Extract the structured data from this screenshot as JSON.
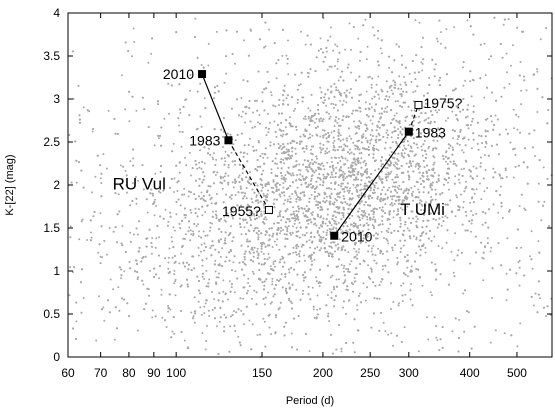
{
  "chart_data": {
    "type": "scatter",
    "title": "",
    "xlabel": "Period (d)",
    "ylabel": "K-[22] (mag)",
    "x_scale": "log",
    "xlim": [
      60,
      590
    ],
    "ylim": [
      0,
      4
    ],
    "x_ticks": [
      60,
      70,
      80,
      90,
      100,
      150,
      200,
      250,
      300,
      400,
      500
    ],
    "y_ticks": [
      0,
      0.5,
      1,
      1.5,
      2,
      2.5,
      3,
      3.5,
      4
    ],
    "y_tick_labels": [
      "0",
      "0.5",
      "1",
      "1.5",
      "2",
      "2.5",
      "3",
      "3.5",
      "4"
    ],
    "grid": false,
    "background_points": {
      "description_color": "#a9a9a9",
      "marker": "small dot",
      "count": 6500,
      "clusters": [
        {
          "x_center": 210,
          "y_center": 1.95,
          "weight": 0.55
        },
        {
          "x_center": 280,
          "y_center": 2.4,
          "weight": 0.25
        },
        {
          "x_center": 120,
          "y_center": 1.3,
          "weight": 0.2
        }
      ]
    },
    "series": [
      {
        "name": "RU Vul",
        "points": [
          {
            "x": 113,
            "y": 3.29,
            "label": "2010",
            "marker": "filled-square"
          },
          {
            "x": 128,
            "y": 2.52,
            "label": "1983",
            "marker": "filled-square"
          },
          {
            "x": 155,
            "y": 1.71,
            "label": "1955?",
            "marker": "open-square"
          }
        ],
        "segments": [
          "solid",
          "dashed"
        ]
      },
      {
        "name": "T UMi",
        "points": [
          {
            "x": 211,
            "y": 1.41,
            "label": "2010",
            "marker": "filled-square"
          },
          {
            "x": 300,
            "y": 2.62,
            "label": "1983",
            "marker": "filled-square"
          },
          {
            "x": 314,
            "y": 2.93,
            "label": "1975?",
            "marker": "open-square"
          }
        ],
        "segments": [
          "solid",
          "dashed"
        ]
      }
    ],
    "annotations": [
      {
        "text": "RU Vul",
        "x": 84,
        "y": 1.95
      },
      {
        "text": "T UMi",
        "x": 320,
        "y": 1.65
      }
    ]
  }
}
